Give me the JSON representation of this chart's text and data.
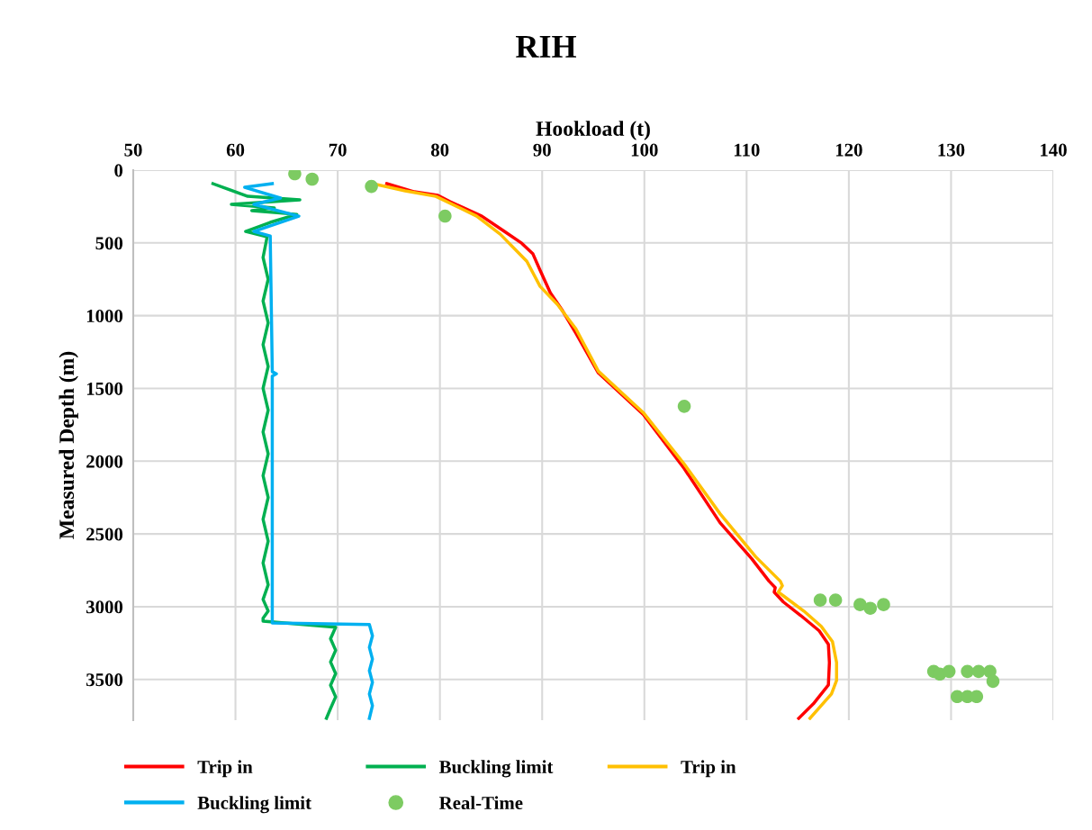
{
  "chart_data": {
    "type": "line",
    "title": "RIH",
    "xlabel": "Hookload (t)",
    "ylabel": "Measured Depth (m)",
    "xlim": [
      50,
      140
    ],
    "xticks": [
      50,
      60,
      70,
      80,
      90,
      100,
      110,
      120,
      130,
      140
    ],
    "ylim": [
      3780,
      0
    ],
    "yticks": [
      0,
      500,
      1000,
      1500,
      2000,
      2500,
      3000,
      3500
    ],
    "grid": true,
    "legend": "bottom",
    "marker": "none",
    "line_style": "solid",
    "series": [
      {
        "name": "Trip in",
        "color": "#ff0000",
        "x": [
          74.8,
          77.5,
          79.8,
          81.0,
          84.1,
          86.3,
          88.0,
          89.1,
          89.8,
          90.8,
          92.0,
          93.3,
          95.5,
          99.9,
          103.9,
          107.4,
          110.5,
          112.2,
          112.8,
          112.7,
          113.6,
          115.3,
          117.1,
          118.0,
          118.1,
          118.0,
          116.6,
          115.1
        ],
        "values": [
          93,
          149,
          173,
          217,
          316,
          421,
          502,
          576,
          688,
          843,
          967,
          1121,
          1394,
          1679,
          2051,
          2423,
          2670,
          2825,
          2869,
          2900,
          2968,
          3061,
          3166,
          3259,
          3383,
          3538,
          3662,
          3767
        ]
      },
      {
        "name": "Buckling limit",
        "color": "#00b050",
        "x": [
          57.8,
          61.2,
          66.3,
          59.6,
          63.8,
          61.6,
          66.0,
          63.4,
          61.0,
          63.1,
          62.7,
          63.2,
          62.7,
          63.2,
          62.7,
          63.2,
          62.7,
          63.2,
          62.7,
          63.2,
          62.7,
          63.2,
          62.7,
          63.2,
          62.7,
          63.2,
          62.7,
          63.2,
          62.7,
          62.7,
          69.8,
          69.3,
          69.8,
          69.3,
          69.8,
          69.3,
          69.8,
          69.3,
          68.9
        ],
        "values": [
          93,
          180,
          204,
          235,
          260,
          279,
          304,
          359,
          421,
          458,
          600,
          750,
          900,
          1050,
          1200,
          1350,
          1500,
          1650,
          1800,
          1950,
          2100,
          2250,
          2400,
          2550,
          2700,
          2850,
          2950,
          3030,
          3080,
          3100,
          3141,
          3220,
          3300,
          3380,
          3460,
          3540,
          3620,
          3700,
          3767
        ]
      },
      {
        "name": "Trip in",
        "color": "#ffc000",
        "x": [
          73.8,
          76.6,
          79.6,
          83.6,
          85.9,
          88.5,
          89.8,
          91.5,
          93.3,
          95.5,
          99.9,
          103.9,
          107.4,
          110.9,
          113.3,
          113.5,
          113.1,
          113.7,
          115.6,
          117.3,
          118.4,
          118.8,
          118.8,
          118.3,
          116.2
        ],
        "values": [
          99,
          142,
          180,
          316,
          440,
          626,
          799,
          923,
          1090,
          1382,
          1667,
          2020,
          2361,
          2658,
          2825,
          2856,
          2900,
          2931,
          3030,
          3135,
          3240,
          3383,
          3507,
          3600,
          3767
        ]
      },
      {
        "name": "Buckling limit",
        "color": "#00b0f0",
        "x": [
          63.6,
          60.9,
          64.4,
          61.8,
          66.2,
          61.8,
          63.4,
          63.6,
          63.6,
          64.0,
          63.6,
          63.6,
          63.6,
          73.1,
          73.4,
          73.1,
          73.4,
          73.1,
          73.4,
          73.1,
          73.4,
          73.1
        ],
        "values": [
          93,
          118,
          192,
          235,
          316,
          421,
          452,
          1370,
          1385,
          1400,
          1415,
          3100,
          3112,
          3123,
          3200,
          3280,
          3360,
          3440,
          3520,
          3600,
          3680,
          3767
        ]
      },
      {
        "name": "Real-Time",
        "type": "scatter",
        "marker": "circle",
        "color": "#7dcb62",
        "x": [
          65.8,
          67.5,
          73.3,
          80.5,
          103.9,
          117.2,
          118.7,
          121.1,
          122.1,
          123.4,
          128.3,
          128.9,
          129.8,
          131.6,
          132.7,
          133.8,
          134.1,
          130.6,
          131.6,
          132.5
        ],
        "values": [
          25,
          62,
          112,
          316,
          1623,
          2955,
          2955,
          2986,
          3011,
          2986,
          3445,
          3463,
          3445,
          3445,
          3445,
          3445,
          3513,
          3618,
          3618,
          3618
        ]
      }
    ]
  }
}
